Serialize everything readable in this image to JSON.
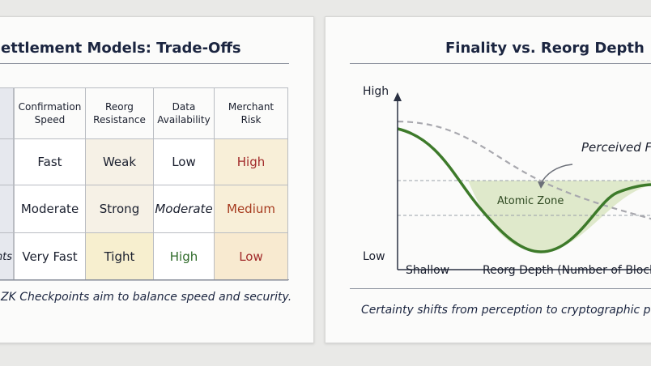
{
  "left_panel": {
    "title": "ettlement Models: Trade-Offs",
    "headers": [
      {
        "line1": "Confirmation",
        "line2": "Speed"
      },
      {
        "line1": "Reorg",
        "line2": "Resistance"
      },
      {
        "line1": "Data",
        "line2": "Availability"
      },
      {
        "line1": "Merchant",
        "line2": "Risk"
      }
    ],
    "row_stubs": [
      "",
      "",
      "nts"
    ],
    "rows": [
      [
        "Fast",
        "Weak",
        "Low",
        "High"
      ],
      [
        "Moderate",
        "Strong",
        "Moderate",
        "Medium"
      ],
      [
        "Very Fast",
        "Tight",
        "High",
        "Low"
      ]
    ],
    "caption": "ZK Checkpoints aim to balance speed and security.",
    "colors": {
      "risk_high": "#a12a2a",
      "risk_medium": "#a63a1e",
      "high_green": "#2f6b2a"
    }
  },
  "right_panel": {
    "title": "Finality vs. Reorg Depth",
    "y_high": "High",
    "y_low": "Low",
    "x_left": "Shallow",
    "x_label": "Reorg Depth (Number of Blocks)",
    "annotation": "Perceived Fin",
    "zone_label": "Atomic Zone",
    "caption": "Certainty shifts from perception to cryptographic proof",
    "colors": {
      "curve": "#3d7a2a",
      "dashed": "#a8a8ae",
      "zone": "#dbe7c5"
    }
  }
}
